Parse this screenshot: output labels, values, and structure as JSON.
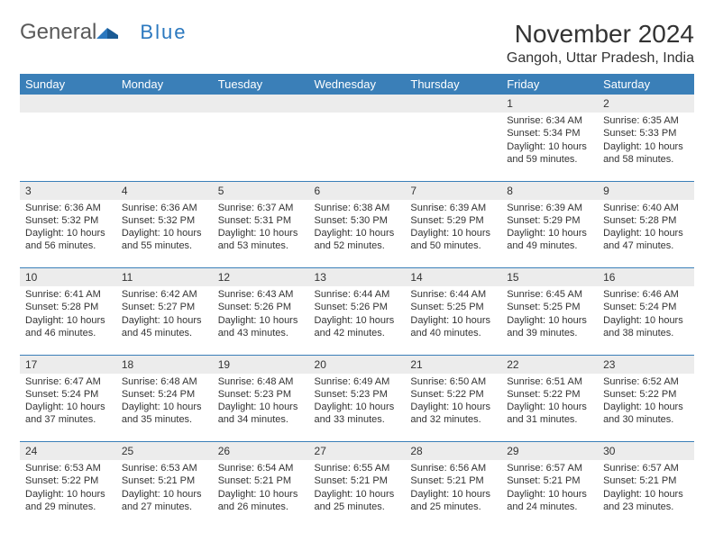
{
  "brand": {
    "part1": "General",
    "part2": "Blue"
  },
  "title": "November 2024",
  "location": "Gangoh, Uttar Pradesh, India",
  "columns": [
    "Sunday",
    "Monday",
    "Tuesday",
    "Wednesday",
    "Thursday",
    "Friday",
    "Saturday"
  ],
  "style": {
    "header_bg": "#3a7fb8",
    "header_fg": "#ffffff",
    "daynum_bg": "#ececec",
    "rule_color": "#3a7fb8",
    "body_font_size": 11,
    "title_font_size": 28
  },
  "weeks": [
    [
      {
        "n": "",
        "sunrise": "",
        "sunset": "",
        "daylight": ""
      },
      {
        "n": "",
        "sunrise": "",
        "sunset": "",
        "daylight": ""
      },
      {
        "n": "",
        "sunrise": "",
        "sunset": "",
        "daylight": ""
      },
      {
        "n": "",
        "sunrise": "",
        "sunset": "",
        "daylight": ""
      },
      {
        "n": "",
        "sunrise": "",
        "sunset": "",
        "daylight": ""
      },
      {
        "n": "1",
        "sunrise": "Sunrise: 6:34 AM",
        "sunset": "Sunset: 5:34 PM",
        "daylight": "Daylight: 10 hours and 59 minutes."
      },
      {
        "n": "2",
        "sunrise": "Sunrise: 6:35 AM",
        "sunset": "Sunset: 5:33 PM",
        "daylight": "Daylight: 10 hours and 58 minutes."
      }
    ],
    [
      {
        "n": "3",
        "sunrise": "Sunrise: 6:36 AM",
        "sunset": "Sunset: 5:32 PM",
        "daylight": "Daylight: 10 hours and 56 minutes."
      },
      {
        "n": "4",
        "sunrise": "Sunrise: 6:36 AM",
        "sunset": "Sunset: 5:32 PM",
        "daylight": "Daylight: 10 hours and 55 minutes."
      },
      {
        "n": "5",
        "sunrise": "Sunrise: 6:37 AM",
        "sunset": "Sunset: 5:31 PM",
        "daylight": "Daylight: 10 hours and 53 minutes."
      },
      {
        "n": "6",
        "sunrise": "Sunrise: 6:38 AM",
        "sunset": "Sunset: 5:30 PM",
        "daylight": "Daylight: 10 hours and 52 minutes."
      },
      {
        "n": "7",
        "sunrise": "Sunrise: 6:39 AM",
        "sunset": "Sunset: 5:29 PM",
        "daylight": "Daylight: 10 hours and 50 minutes."
      },
      {
        "n": "8",
        "sunrise": "Sunrise: 6:39 AM",
        "sunset": "Sunset: 5:29 PM",
        "daylight": "Daylight: 10 hours and 49 minutes."
      },
      {
        "n": "9",
        "sunrise": "Sunrise: 6:40 AM",
        "sunset": "Sunset: 5:28 PM",
        "daylight": "Daylight: 10 hours and 47 minutes."
      }
    ],
    [
      {
        "n": "10",
        "sunrise": "Sunrise: 6:41 AM",
        "sunset": "Sunset: 5:28 PM",
        "daylight": "Daylight: 10 hours and 46 minutes."
      },
      {
        "n": "11",
        "sunrise": "Sunrise: 6:42 AM",
        "sunset": "Sunset: 5:27 PM",
        "daylight": "Daylight: 10 hours and 45 minutes."
      },
      {
        "n": "12",
        "sunrise": "Sunrise: 6:43 AM",
        "sunset": "Sunset: 5:26 PM",
        "daylight": "Daylight: 10 hours and 43 minutes."
      },
      {
        "n": "13",
        "sunrise": "Sunrise: 6:44 AM",
        "sunset": "Sunset: 5:26 PM",
        "daylight": "Daylight: 10 hours and 42 minutes."
      },
      {
        "n": "14",
        "sunrise": "Sunrise: 6:44 AM",
        "sunset": "Sunset: 5:25 PM",
        "daylight": "Daylight: 10 hours and 40 minutes."
      },
      {
        "n": "15",
        "sunrise": "Sunrise: 6:45 AM",
        "sunset": "Sunset: 5:25 PM",
        "daylight": "Daylight: 10 hours and 39 minutes."
      },
      {
        "n": "16",
        "sunrise": "Sunrise: 6:46 AM",
        "sunset": "Sunset: 5:24 PM",
        "daylight": "Daylight: 10 hours and 38 minutes."
      }
    ],
    [
      {
        "n": "17",
        "sunrise": "Sunrise: 6:47 AM",
        "sunset": "Sunset: 5:24 PM",
        "daylight": "Daylight: 10 hours and 37 minutes."
      },
      {
        "n": "18",
        "sunrise": "Sunrise: 6:48 AM",
        "sunset": "Sunset: 5:24 PM",
        "daylight": "Daylight: 10 hours and 35 minutes."
      },
      {
        "n": "19",
        "sunrise": "Sunrise: 6:48 AM",
        "sunset": "Sunset: 5:23 PM",
        "daylight": "Daylight: 10 hours and 34 minutes."
      },
      {
        "n": "20",
        "sunrise": "Sunrise: 6:49 AM",
        "sunset": "Sunset: 5:23 PM",
        "daylight": "Daylight: 10 hours and 33 minutes."
      },
      {
        "n": "21",
        "sunrise": "Sunrise: 6:50 AM",
        "sunset": "Sunset: 5:22 PM",
        "daylight": "Daylight: 10 hours and 32 minutes."
      },
      {
        "n": "22",
        "sunrise": "Sunrise: 6:51 AM",
        "sunset": "Sunset: 5:22 PM",
        "daylight": "Daylight: 10 hours and 31 minutes."
      },
      {
        "n": "23",
        "sunrise": "Sunrise: 6:52 AM",
        "sunset": "Sunset: 5:22 PM",
        "daylight": "Daylight: 10 hours and 30 minutes."
      }
    ],
    [
      {
        "n": "24",
        "sunrise": "Sunrise: 6:53 AM",
        "sunset": "Sunset: 5:22 PM",
        "daylight": "Daylight: 10 hours and 29 minutes."
      },
      {
        "n": "25",
        "sunrise": "Sunrise: 6:53 AM",
        "sunset": "Sunset: 5:21 PM",
        "daylight": "Daylight: 10 hours and 27 minutes."
      },
      {
        "n": "26",
        "sunrise": "Sunrise: 6:54 AM",
        "sunset": "Sunset: 5:21 PM",
        "daylight": "Daylight: 10 hours and 26 minutes."
      },
      {
        "n": "27",
        "sunrise": "Sunrise: 6:55 AM",
        "sunset": "Sunset: 5:21 PM",
        "daylight": "Daylight: 10 hours and 25 minutes."
      },
      {
        "n": "28",
        "sunrise": "Sunrise: 6:56 AM",
        "sunset": "Sunset: 5:21 PM",
        "daylight": "Daylight: 10 hours and 25 minutes."
      },
      {
        "n": "29",
        "sunrise": "Sunrise: 6:57 AM",
        "sunset": "Sunset: 5:21 PM",
        "daylight": "Daylight: 10 hours and 24 minutes."
      },
      {
        "n": "30",
        "sunrise": "Sunrise: 6:57 AM",
        "sunset": "Sunset: 5:21 PM",
        "daylight": "Daylight: 10 hours and 23 minutes."
      }
    ]
  ]
}
